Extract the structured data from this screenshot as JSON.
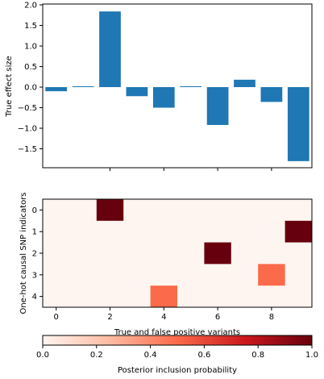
{
  "chart_data": [
    {
      "type": "bar",
      "ylabel": "True effect size",
      "x": [
        0,
        1,
        2,
        3,
        4,
        5,
        6,
        7,
        8,
        9
      ],
      "values": [
        -0.1,
        0.02,
        1.84,
        -0.22,
        -0.5,
        0.02,
        -0.92,
        0.18,
        -0.36,
        -1.8
      ],
      "ylim": [
        -2.0,
        2.0
      ],
      "yticks": [
        2.0,
        1.5,
        1.0,
        0.5,
        0.0,
        -0.5,
        -1.0,
        -1.5
      ],
      "ytick_labels": [
        "2.0",
        "1.5",
        "1.0",
        "0.5",
        "0.0",
        "−0.5",
        "−1.0",
        "−1.5"
      ],
      "xticks": [
        2,
        4,
        6,
        8
      ],
      "bar_color": "#1f77b4",
      "grid": false
    },
    {
      "type": "heatmap",
      "ylabel": "One-hot causal SNP indicators",
      "xlabel": "True and false positive variants",
      "x_range": [
        -0.5,
        9.5
      ],
      "y_range": [
        -0.5,
        4.5
      ],
      "xticks": [
        0,
        2,
        4,
        6,
        8
      ],
      "yticks": [
        0,
        1,
        2,
        3,
        4
      ],
      "cells": [
        {
          "x": 2,
          "y": 0,
          "value": 1.0
        },
        {
          "x": 9,
          "y": 1,
          "value": 1.0
        },
        {
          "x": 6,
          "y": 2,
          "value": 1.0
        },
        {
          "x": 8,
          "y": 3,
          "value": 0.5
        },
        {
          "x": 4,
          "y": 4,
          "value": 0.5
        }
      ],
      "background_value": 0.0,
      "colormap": "Reds",
      "colorbar": {
        "label": "Posterior inclusion probability",
        "ticks": [
          0.0,
          0.2,
          0.4,
          0.6,
          0.8,
          1.0
        ],
        "tick_labels": [
          "0.0",
          "0.2",
          "0.4",
          "0.6",
          "0.8",
          "1.0"
        ],
        "orientation": "horizontal",
        "stops": [
          "#fff5f0",
          "#fcbba1",
          "#fb6a4a",
          "#cb181d",
          "#67000d"
        ]
      }
    }
  ]
}
